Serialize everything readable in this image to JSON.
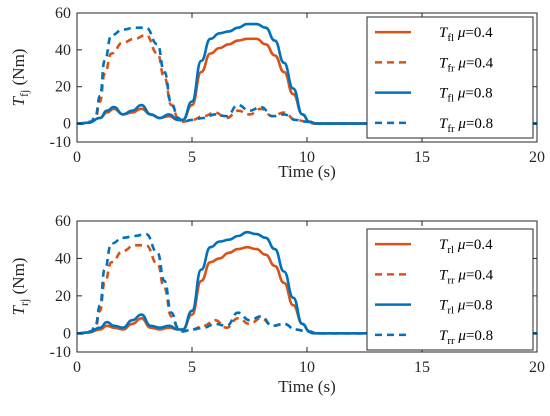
{
  "colors": {
    "orange": "#D95319",
    "blue": "#0072BD",
    "axis": "#262626"
  },
  "chart_data": [
    {
      "type": "line",
      "ylabel": {
        "symbol": "T",
        "sub": "fj",
        "unit": "(Nm)"
      },
      "xlabel": "Time (s)",
      "xlim": [
        0,
        20
      ],
      "ylim": [
        -10,
        60
      ],
      "xticks": [
        "0",
        "5",
        "10",
        "15",
        "20"
      ],
      "yticks": [
        "60",
        "40",
        "20",
        "0",
        "-10"
      ],
      "grid": false,
      "legend_position": "top-right",
      "series": [
        {
          "name": "T_fl μ=0.4",
          "sym": "T",
          "sub": "fl",
          "mu": "μ=0.4",
          "color": "#D95319",
          "style": "solid",
          "x": [
            0,
            0.5,
            1,
            1.3,
            1.6,
            2,
            2.4,
            2.8,
            3.2,
            3.6,
            4,
            4.4,
            4.6,
            5,
            5.4,
            5.8,
            6.2,
            6.6,
            7,
            7.4,
            7.8,
            8.2,
            8.6,
            9,
            9.4,
            9.8,
            10.1,
            10.4,
            12,
            20
          ],
          "y": [
            0,
            0.5,
            3,
            6,
            8,
            5,
            6,
            8,
            5,
            3,
            4,
            2,
            2,
            10,
            28,
            38,
            41,
            43,
            45,
            46,
            46,
            43,
            37,
            28,
            16,
            5,
            1,
            0,
            0,
            0
          ]
        },
        {
          "name": "T_fr μ=0.4",
          "sym": "T",
          "sub": "fr",
          "mu": "μ=0.4",
          "color": "#D95319",
          "style": "dashed",
          "x": [
            0,
            0.3,
            0.6,
            0.8,
            1,
            1.2,
            1.5,
            2,
            2.5,
            3,
            3.5,
            3.8,
            4.1,
            4.4,
            4.6,
            5,
            5.5,
            6,
            6.5,
            7,
            7.5,
            8,
            8.5,
            9,
            9.5,
            10,
            10.3,
            20
          ],
          "y": [
            0,
            0,
            1,
            3,
            12,
            27,
            38,
            44,
            46,
            48,
            38,
            25,
            10,
            3,
            1,
            2,
            4,
            6,
            3,
            7,
            5,
            8,
            4,
            6,
            2,
            1,
            0,
            0
          ]
        },
        {
          "name": "T_fl μ=0.8",
          "sym": "T",
          "sub": "fl",
          "mu": "μ=0.8",
          "color": "#0072BD",
          "style": "solid",
          "x": [
            0,
            0.5,
            1,
            1.3,
            1.6,
            2,
            2.4,
            2.8,
            3.2,
            3.6,
            4,
            4.4,
            4.6,
            5,
            5.4,
            5.8,
            6.2,
            6.6,
            7,
            7.4,
            7.8,
            8.2,
            8.6,
            9,
            9.4,
            9.8,
            10.1,
            10.4,
            12,
            20
          ],
          "y": [
            0,
            0.5,
            3,
            7,
            9,
            5,
            7,
            10,
            5,
            3,
            5,
            2,
            2,
            12,
            34,
            46,
            49,
            50,
            52,
            54,
            54,
            52,
            45,
            33,
            19,
            5,
            1,
            0,
            0,
            0
          ]
        },
        {
          "name": "T_fr μ=0.8",
          "sym": "T",
          "sub": "fr",
          "mu": "μ=0.8",
          "color": "#0072BD",
          "style": "dashed",
          "x": [
            0,
            0.3,
            0.6,
            0.8,
            1,
            1.2,
            1.5,
            2,
            2.5,
            3,
            3.5,
            3.8,
            4.1,
            4.4,
            4.6,
            5,
            5.5,
            6,
            6.5,
            7,
            7.5,
            8,
            8.5,
            9,
            9.5,
            10,
            10.3,
            20
          ],
          "y": [
            0,
            0,
            1,
            4,
            15,
            34,
            48,
            51,
            52,
            52,
            43,
            28,
            11,
            3,
            1,
            2,
            3,
            5,
            4,
            10,
            7,
            9,
            4,
            5,
            2,
            1,
            0,
            0
          ]
        }
      ]
    },
    {
      "type": "line",
      "ylabel": {
        "symbol": "T",
        "sub": "rj",
        "unit": "(Nm)"
      },
      "xlabel": "Time (s)",
      "xlim": [
        0,
        20
      ],
      "ylim": [
        -10,
        60
      ],
      "xticks": [
        "0",
        "5",
        "10",
        "15",
        "20"
      ],
      "yticks": [
        "60",
        "40",
        "20",
        "0",
        "-10"
      ],
      "grid": false,
      "legend_position": "top-right",
      "series": [
        {
          "name": "T_rl μ=0.4",
          "sym": "T",
          "sub": "rl",
          "mu": "μ=0.4",
          "color": "#D95319",
          "style": "solid",
          "x": [
            0,
            0.5,
            1,
            1.3,
            1.6,
            2,
            2.4,
            2.8,
            3.2,
            3.6,
            4,
            4.4,
            4.6,
            5,
            5.4,
            5.8,
            6.2,
            6.6,
            7,
            7.4,
            7.8,
            8.2,
            8.6,
            9,
            9.4,
            9.8,
            10.1,
            10.4,
            12,
            20
          ],
          "y": [
            0,
            0.5,
            2,
            4,
            3,
            2,
            5,
            8,
            3,
            2,
            3,
            2,
            2,
            10,
            28,
            38,
            40,
            43,
            45,
            46,
            45,
            42,
            36,
            27,
            15,
            5,
            1,
            0,
            0,
            0
          ]
        },
        {
          "name": "T_rr μ=0.4",
          "sym": "T",
          "sub": "rr",
          "mu": "μ=0.4",
          "color": "#D95319",
          "style": "dashed",
          "x": [
            0,
            0.3,
            0.6,
            0.8,
            1,
            1.2,
            1.5,
            2,
            2.5,
            3,
            3.5,
            3.8,
            4.1,
            4.4,
            4.6,
            5,
            5.5,
            6,
            6.5,
            7,
            7.5,
            8,
            8.5,
            9,
            9.5,
            10,
            10.3,
            20
          ],
          "y": [
            0,
            0,
            1,
            3,
            12,
            27,
            38,
            44,
            47,
            47,
            37,
            24,
            9,
            3,
            1,
            2,
            4,
            7,
            3,
            8,
            5,
            8,
            4,
            5,
            2,
            1,
            0,
            0
          ]
        },
        {
          "name": "T_rl μ=0.8",
          "sym": "T",
          "sub": "rl",
          "mu": "μ=0.8",
          "color": "#0072BD",
          "style": "solid",
          "x": [
            0,
            0.5,
            1,
            1.3,
            1.6,
            2,
            2.4,
            2.8,
            3.2,
            3.6,
            4,
            4.4,
            4.6,
            5,
            5.4,
            5.8,
            6.2,
            6.6,
            7,
            7.4,
            7.8,
            8.2,
            8.6,
            9,
            9.4,
            9.8,
            10.1,
            10.4,
            12,
            20
          ],
          "y": [
            0,
            0.5,
            3,
            6,
            4,
            3,
            7,
            10,
            4,
            3,
            4,
            2,
            2,
            12,
            34,
            46,
            49,
            50,
            52,
            54,
            53,
            51,
            45,
            33,
            19,
            5,
            1,
            0,
            0,
            0
          ]
        },
        {
          "name": "T_rr μ=0.8",
          "sym": "T",
          "sub": "rr",
          "mu": "μ=0.8",
          "color": "#0072BD",
          "style": "dashed",
          "x": [
            0,
            0.3,
            0.6,
            0.8,
            1,
            1.2,
            1.5,
            2,
            2.5,
            3,
            3.5,
            3.8,
            4.1,
            4.4,
            4.6,
            5,
            5.5,
            6,
            6.5,
            7,
            7.5,
            8,
            8.5,
            9,
            9.5,
            10,
            10.3,
            20
          ],
          "y": [
            0,
            0,
            1,
            4,
            15,
            34,
            48,
            51,
            52,
            53,
            43,
            28,
            11,
            3,
            1,
            2,
            3,
            5,
            4,
            11,
            7,
            9,
            4,
            5,
            2,
            1,
            0,
            0
          ]
        }
      ]
    }
  ]
}
